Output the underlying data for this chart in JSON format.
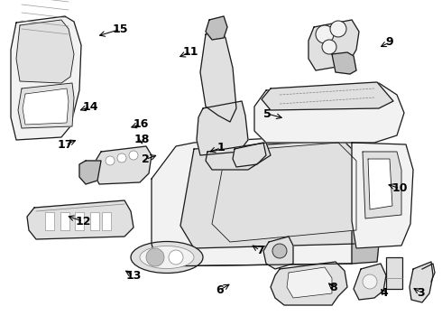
{
  "bg_color": "#ffffff",
  "fig_width": 4.9,
  "fig_height": 3.6,
  "dpi": 100,
  "line_color": "#1a1a1a",
  "fill_light": "#f2f2f2",
  "fill_mid": "#e0e0e0",
  "fill_dark": "#c0c0c0",
  "text_color": "#000000",
  "lw": 0.9,
  "label_fs": 9,
  "labels": {
    "1": [
      0.5,
      0.545,
      0.468,
      0.53
    ],
    "2": [
      0.33,
      0.51,
      0.36,
      0.525
    ],
    "3": [
      0.952,
      0.1,
      0.93,
      0.118
    ],
    "4": [
      0.868,
      0.1,
      0.858,
      0.118
    ],
    "5": [
      0.605,
      0.65,
      0.645,
      0.635
    ],
    "6": [
      0.498,
      0.108,
      0.525,
      0.13
    ],
    "7": [
      0.588,
      0.23,
      0.565,
      0.25
    ],
    "8": [
      0.755,
      0.115,
      0.738,
      0.135
    ],
    "9": [
      0.882,
      0.87,
      0.855,
      0.852
    ],
    "10": [
      0.905,
      0.42,
      0.872,
      0.435
    ],
    "11": [
      0.432,
      0.84,
      0.4,
      0.822
    ],
    "12": [
      0.188,
      0.318,
      0.148,
      0.338
    ],
    "13": [
      0.302,
      0.152,
      0.278,
      0.172
    ],
    "14": [
      0.205,
      0.672,
      0.175,
      0.658
    ],
    "15": [
      0.272,
      0.91,
      0.218,
      0.888
    ],
    "16": [
      0.318,
      0.618,
      0.29,
      0.605
    ],
    "17": [
      0.148,
      0.555,
      0.178,
      0.572
    ],
    "18": [
      0.32,
      0.572,
      0.322,
      0.548
    ]
  }
}
